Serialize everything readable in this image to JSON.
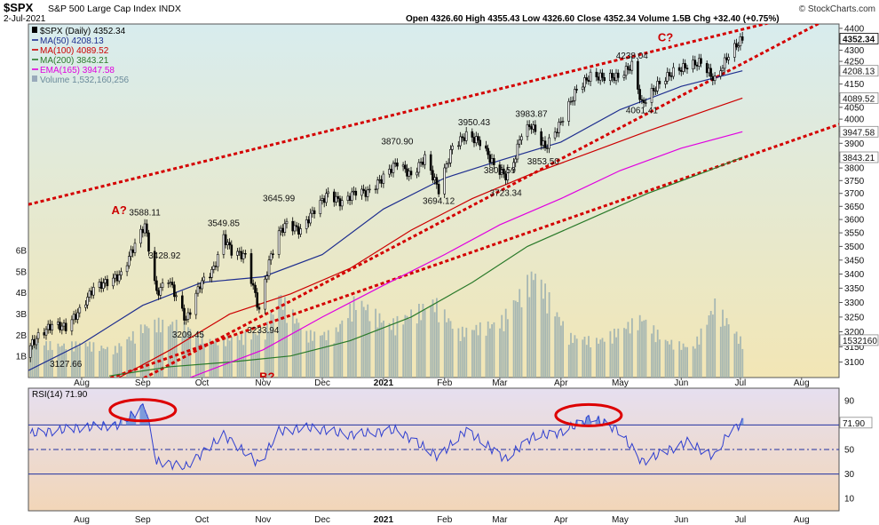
{
  "header": {
    "symbol": "$SPX",
    "name": "S&P 500 Large Cap Index",
    "exchange": "INDX",
    "date": "2-Jul-2021",
    "ohlc": "Open 4326.60   High 4355.43   Low 4326.60   Close 4352.34   Volume 1.5B   Chg +32.40 (+0.75%)",
    "watermark": "© StockCharts.com"
  },
  "legend": [
    {
      "text": "$SPX (Daily) 4352.34",
      "color": "#000000",
      "icon": "square-swatch-icon"
    },
    {
      "text": "MA(50) 4208.13",
      "color": "#1f2f8f",
      "icon": "line-swatch-icon"
    },
    {
      "text": "MA(100) 4089.52",
      "color": "#cc0000",
      "icon": "line-swatch-icon"
    },
    {
      "text": "MA(200) 3843.21",
      "color": "#2a7a2a",
      "icon": "line-swatch-icon"
    },
    {
      "text": "EMA(165) 3947.58",
      "color": "#e000e0",
      "icon": "line-swatch-icon"
    },
    {
      "text": "Volume 1,532,160,256",
      "color": "#9ab",
      "icon": "bars-swatch-icon"
    }
  ],
  "colors": {
    "price_bg_top": "#d8ecee",
    "price_bg_bottom": "#f2e6b5",
    "rsi_bg": "#f2d6b8",
    "ma50": "#1f2f8f",
    "ma100": "#cc0000",
    "ma200": "#2a7a2a",
    "ema165": "#e000e0",
    "trend": "#d40000",
    "volume": "#9aaeb0",
    "rsi": "#2f3fd0"
  },
  "x_labels": [
    "Aug",
    "Sep",
    "Oct",
    "Nov",
    "Dec",
    "2021",
    "Feb",
    "Mar",
    "Apr",
    "May",
    "Jun",
    "Jul",
    "Aug"
  ],
  "volume_labels": [
    "6B",
    "5B",
    "4B",
    "3B",
    "2B",
    "1B"
  ],
  "rsi_panel": {
    "label": "RSI(14) 71.90",
    "value_label": "71.90",
    "ticks": [
      {
        "label": "90",
        "v": 90
      },
      {
        "label": "70",
        "v": 70
      },
      {
        "label": "50",
        "v": 50
      },
      {
        "label": "30",
        "v": 30
      },
      {
        "label": "10",
        "v": 10
      }
    ]
  },
  "annotations": [
    {
      "text": "A?",
      "date": "2020-08-20",
      "price": 3620
    },
    {
      "text": "B?",
      "date": "2020-11-03",
      "price": 3040
    },
    {
      "text": "C?",
      "date": "2021-05-24",
      "price": 4340
    }
  ],
  "price_labels": [
    {
      "text": "3127.66",
      "date": "2020-07-24",
      "price": 3085
    },
    {
      "text": "3588.11",
      "date": "2020-09-02",
      "price": 3615
    },
    {
      "text": "3428.92",
      "date": "2020-09-12",
      "price": 3455
    },
    {
      "text": "3209.45",
      "date": "2020-09-24",
      "price": 3180
    },
    {
      "text": "3549.85",
      "date": "2020-10-12",
      "price": 3575
    },
    {
      "text": "3645.99",
      "date": "2020-11-09",
      "price": 3670
    },
    {
      "text": "3233.94",
      "date": "2020-11-01",
      "price": 3195
    },
    {
      "text": "3870.90",
      "date": "2021-01-08",
      "price": 3895
    },
    {
      "text": "3694.12",
      "date": "2021-01-29",
      "price": 3660
    },
    {
      "text": "3950.43",
      "date": "2021-02-16",
      "price": 3975
    },
    {
      "text": "3805.59",
      "date": "2021-03-01",
      "price": 3780
    },
    {
      "text": "3723.34",
      "date": "2021-03-04",
      "price": 3690
    },
    {
      "text": "3983.87",
      "date": "2021-03-17",
      "price": 4010
    },
    {
      "text": "3853.50",
      "date": "2021-03-23",
      "price": 3815
    },
    {
      "text": "4238.04",
      "date": "2021-05-07",
      "price": 4262
    },
    {
      "text": "4061.41",
      "date": "2021-05-12",
      "price": 4025
    }
  ],
  "chart_data": {
    "type": "line",
    "title": "$SPX S&P 500 Large Cap Index INDX",
    "x_range": [
      "2020-07-05",
      "2021-08-20"
    ],
    "ylim": [
      3050,
      4420
    ],
    "y_scale": "log",
    "y_ticks": [
      3100,
      3150,
      3200,
      3250,
      3300,
      3350,
      3400,
      3450,
      3500,
      3550,
      3600,
      3650,
      3700,
      3750,
      3800,
      3850,
      3900,
      3950,
      4000,
      4050,
      4100,
      4150,
      4200,
      4250,
      4300,
      4350,
      4400
    ],
    "grid": false,
    "legend_position": "top-left",
    "last_value_tags": [
      {
        "label": "4352.34",
        "value": 4352.34,
        "highlight": true
      },
      {
        "label": "4208.13",
        "value": 4208.13
      },
      {
        "label": "4089.52",
        "value": 4089.52
      },
      {
        "label": "3947.58",
        "value": 3947.58
      },
      {
        "label": "3843.21",
        "value": 3843.21
      },
      {
        "label": "1532160",
        "value": 3172
      }
    ],
    "price": {
      "name": "$SPX (Daily)",
      "points": [
        [
          "2020-07-01",
          3115
        ],
        [
          "2020-07-10",
          3185
        ],
        [
          "2020-07-17",
          3224
        ],
        [
          "2020-07-24",
          3216
        ],
        [
          "2020-07-31",
          3271
        ],
        [
          "2020-08-07",
          3351
        ],
        [
          "2020-08-14",
          3372
        ],
        [
          "2020-08-21",
          3397
        ],
        [
          "2020-08-28",
          3508
        ],
        [
          "2020-09-02",
          3580
        ],
        [
          "2020-09-08",
          3331
        ],
        [
          "2020-09-14",
          3383
        ],
        [
          "2020-09-18",
          3319
        ],
        [
          "2020-09-23",
          3237
        ],
        [
          "2020-09-30",
          3363
        ],
        [
          "2020-10-07",
          3419
        ],
        [
          "2020-10-12",
          3534
        ],
        [
          "2020-10-16",
          3483
        ],
        [
          "2020-10-23",
          3465
        ],
        [
          "2020-10-30",
          3270
        ],
        [
          "2020-11-04",
          3443
        ],
        [
          "2020-11-09",
          3550
        ],
        [
          "2020-11-13",
          3585
        ],
        [
          "2020-11-20",
          3557
        ],
        [
          "2020-11-27",
          3638
        ],
        [
          "2020-12-04",
          3699
        ],
        [
          "2020-12-11",
          3663
        ],
        [
          "2020-12-18",
          3709
        ],
        [
          "2020-12-24",
          3703
        ],
        [
          "2020-12-31",
          3756
        ],
        [
          "2021-01-08",
          3824
        ],
        [
          "2021-01-15",
          3768
        ],
        [
          "2021-01-22",
          3841
        ],
        [
          "2021-01-29",
          3714
        ],
        [
          "2021-02-05",
          3886
        ],
        [
          "2021-02-12",
          3934
        ],
        [
          "2021-02-19",
          3906
        ],
        [
          "2021-02-26",
          3811
        ],
        [
          "2021-03-04",
          3768
        ],
        [
          "2021-03-08",
          3821
        ],
        [
          "2021-03-12",
          3943
        ],
        [
          "2021-03-17",
          3974
        ],
        [
          "2021-03-24",
          3881
        ],
        [
          "2021-03-31",
          3972
        ],
        [
          "2021-04-09",
          4128
        ],
        [
          "2021-04-16",
          4185
        ],
        [
          "2021-04-23",
          4180
        ],
        [
          "2021-04-30",
          4181
        ],
        [
          "2021-05-07",
          4232
        ],
        [
          "2021-05-12",
          4063
        ],
        [
          "2021-05-21",
          4155
        ],
        [
          "2021-05-28",
          4204
        ],
        [
          "2021-06-04",
          4229
        ],
        [
          "2021-06-11",
          4247
        ],
        [
          "2021-06-18",
          4166
        ],
        [
          "2021-06-25",
          4280
        ],
        [
          "2021-07-02",
          4352.34
        ]
      ]
    },
    "ma50": {
      "name": "MA(50)",
      "points": [
        [
          "2020-07-01",
          3060
        ],
        [
          "2020-08-01",
          3160
        ],
        [
          "2020-09-01",
          3290
        ],
        [
          "2020-10-01",
          3370
        ],
        [
          "2020-11-01",
          3390
        ],
        [
          "2020-12-01",
          3470
        ],
        [
          "2021-01-01",
          3640
        ],
        [
          "2021-02-01",
          3760
        ],
        [
          "2021-03-01",
          3830
        ],
        [
          "2021-04-01",
          3905
        ],
        [
          "2021-05-01",
          4040
        ],
        [
          "2021-06-01",
          4140
        ],
        [
          "2021-07-02",
          4208.13
        ]
      ]
    },
    "ma100": {
      "name": "MA(100)",
      "points": [
        [
          "2020-08-20",
          3050
        ],
        [
          "2020-09-15",
          3140
        ],
        [
          "2020-10-15",
          3260
        ],
        [
          "2020-11-15",
          3330
        ],
        [
          "2020-12-15",
          3420
        ],
        [
          "2021-01-15",
          3560
        ],
        [
          "2021-02-15",
          3680
        ],
        [
          "2021-03-15",
          3770
        ],
        [
          "2021-04-15",
          3860
        ],
        [
          "2021-05-15",
          3950
        ],
        [
          "2021-06-15",
          4040
        ],
        [
          "2021-07-02",
          4089.52
        ]
      ]
    },
    "ema165": {
      "name": "EMA(165)",
      "points": [
        [
          "2020-09-25",
          3050
        ],
        [
          "2020-11-01",
          3140
        ],
        [
          "2020-12-01",
          3250
        ],
        [
          "2021-01-01",
          3360
        ],
        [
          "2021-02-01",
          3470
        ],
        [
          "2021-03-01",
          3580
        ],
        [
          "2021-04-01",
          3680
        ],
        [
          "2021-05-01",
          3790
        ],
        [
          "2021-06-01",
          3880
        ],
        [
          "2021-07-02",
          3947.58
        ]
      ]
    },
    "ma200": {
      "name": "MA(200)",
      "points": [
        [
          "2020-08-15",
          3055
        ],
        [
          "2020-09-15",
          3085
        ],
        [
          "2020-10-15",
          3100
        ],
        [
          "2020-11-15",
          3120
        ],
        [
          "2020-12-15",
          3170
        ],
        [
          "2021-01-15",
          3250
        ],
        [
          "2021-02-15",
          3370
        ],
        [
          "2021-03-15",
          3500
        ],
        [
          "2021-04-15",
          3600
        ],
        [
          "2021-05-15",
          3700
        ],
        [
          "2021-06-15",
          3790
        ],
        [
          "2021-07-02",
          3843.21
        ]
      ]
    },
    "volume": {
      "name": "Volume",
      "unit": "shares",
      "points": [
        [
          "2020-07-06",
          1.6
        ],
        [
          "2020-07-20",
          1.4
        ],
        [
          "2020-08-03",
          1.5
        ],
        [
          "2020-08-17",
          1.2
        ],
        [
          "2020-09-01",
          2.2
        ],
        [
          "2020-09-08",
          2.4
        ],
        [
          "2020-09-21",
          2.3
        ],
        [
          "2020-10-05",
          1.6
        ],
        [
          "2020-10-19",
          1.8
        ],
        [
          "2020-11-02",
          2.0
        ],
        [
          "2020-11-09",
          3.6
        ],
        [
          "2020-11-23",
          1.9
        ],
        [
          "2020-12-07",
          1.9
        ],
        [
          "2020-12-18",
          3.4
        ],
        [
          "2021-01-04",
          2.3
        ],
        [
          "2021-01-27",
          3.3
        ],
        [
          "2021-02-08",
          2.0
        ],
        [
          "2021-03-01",
          2.4
        ],
        [
          "2021-03-19",
          4.6
        ],
        [
          "2021-04-05",
          1.8
        ],
        [
          "2021-04-20",
          1.6
        ],
        [
          "2021-05-12",
          2.6
        ],
        [
          "2021-05-24",
          1.6
        ],
        [
          "2021-06-07",
          1.3
        ],
        [
          "2021-06-18",
          3.2
        ],
        [
          "2021-07-02",
          1.53
        ]
      ]
    },
    "rsi": {
      "name": "RSI(14)",
      "points": [
        [
          "2020-07-01",
          62
        ],
        [
          "2020-08-01",
          68
        ],
        [
          "2020-08-20",
          70
        ],
        [
          "2020-09-02",
          86
        ],
        [
          "2020-09-08",
          40
        ],
        [
          "2020-09-23",
          36
        ],
        [
          "2020-10-12",
          62
        ],
        [
          "2020-10-30",
          38
        ],
        [
          "2020-11-09",
          65
        ],
        [
          "2020-11-25",
          68
        ],
        [
          "2020-12-15",
          62
        ],
        [
          "2021-01-08",
          66
        ],
        [
          "2021-01-29",
          44
        ],
        [
          "2021-02-12",
          66
        ],
        [
          "2021-03-04",
          42
        ],
        [
          "2021-03-17",
          60
        ],
        [
          "2021-04-01",
          64
        ],
        [
          "2021-04-16",
          76
        ],
        [
          "2021-04-30",
          66
        ],
        [
          "2021-05-12",
          40
        ],
        [
          "2021-06-04",
          56
        ],
        [
          "2021-06-18",
          44
        ],
        [
          "2021-06-25",
          64
        ],
        [
          "2021-07-02",
          71.9
        ]
      ]
    },
    "trendlines": [
      {
        "name": "upper channel",
        "from": [
          "2020-07-01",
          3650
        ],
        "to": [
          "2021-07-02",
          4395
        ]
      },
      {
        "name": "lower channel",
        "from": [
          "2020-07-01",
          2950
        ],
        "to": [
          "2021-07-02",
          3840
        ]
      },
      {
        "name": "steep support",
        "from": [
          "2020-09-23",
          3120
        ],
        "to": [
          "2021-07-02",
          4240
        ]
      }
    ],
    "rsi_highlights": [
      [
        "2020-09-01",
        82
      ],
      [
        "2021-04-15",
        78
      ]
    ]
  }
}
